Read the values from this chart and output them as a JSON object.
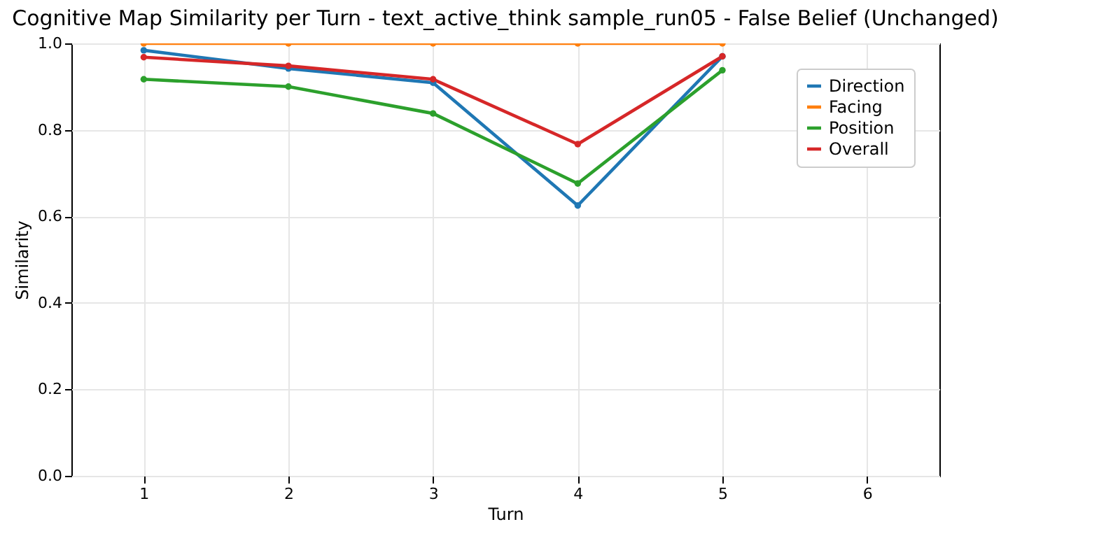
{
  "chart_data": {
    "type": "line",
    "title": "Cognitive Map Similarity per Turn - text_active_think sample_run05 - False Belief (Unchanged)",
    "xlabel": "Turn",
    "ylabel": "Similarity",
    "x": [
      1,
      2,
      3,
      4,
      5
    ],
    "xlim": [
      0.5,
      6.5
    ],
    "xticks": [
      1,
      2,
      3,
      4,
      5,
      6
    ],
    "ylim": [
      0,
      1
    ],
    "yticks": [
      {
        "value": 0,
        "label": "0.0"
      },
      {
        "value": 0.2,
        "label": "0.2"
      },
      {
        "value": 0.4,
        "label": "0.4"
      },
      {
        "value": 0.6,
        "label": "0.6"
      },
      {
        "value": 0.8,
        "label": "0.8"
      },
      {
        "value": 1,
        "label": "1.0"
      }
    ],
    "grid": true,
    "legend": "top right",
    "marker": "circle",
    "line_style": "solid",
    "series": [
      {
        "name": "Direction",
        "color": "#1f77b4",
        "values": [
          0.984,
          0.942,
          0.909,
          0.625,
          0.97
        ]
      },
      {
        "name": "Facing",
        "color": "#ff7f0e",
        "values": [
          1.0,
          1.0,
          1.0,
          1.0,
          1.0
        ]
      },
      {
        "name": "Position",
        "color": "#2ca02c",
        "values": [
          0.917,
          0.9,
          0.838,
          0.676,
          0.938
        ]
      },
      {
        "name": "Overall",
        "color": "#d62728",
        "values": [
          0.968,
          0.948,
          0.917,
          0.767,
          0.97
        ]
      }
    ]
  }
}
